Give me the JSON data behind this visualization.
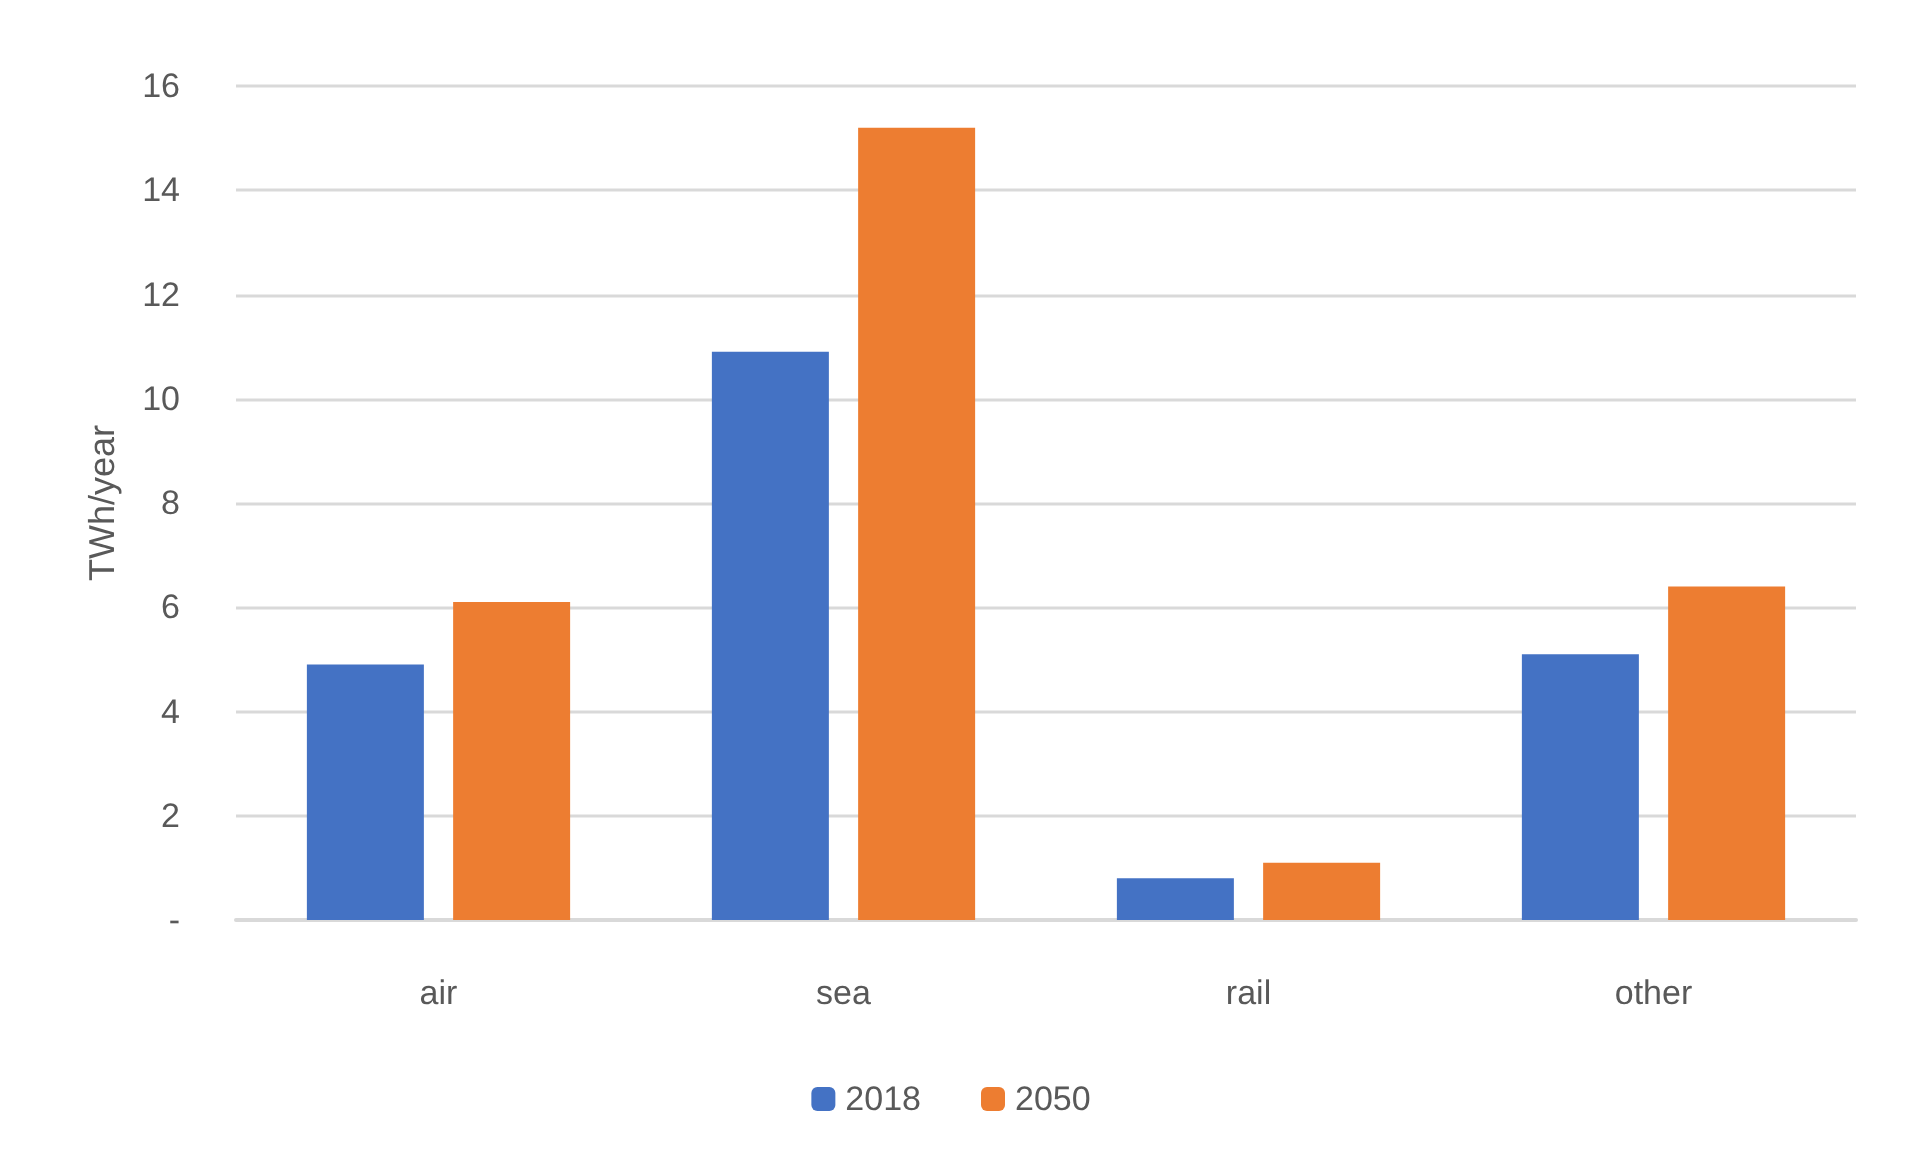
{
  "chart_data": {
    "type": "bar",
    "ylabel": "TWh/year",
    "categories": [
      "air",
      "sea",
      "rail",
      "other"
    ],
    "series": [
      {
        "name": "2018",
        "color": "#4472c4",
        "values": [
          4.9,
          10.9,
          0.8,
          5.1
        ]
      },
      {
        "name": "2050",
        "color": "#ed7d31",
        "values": [
          6.1,
          15.2,
          1.1,
          6.4
        ]
      }
    ],
    "ylim": [
      0,
      16
    ],
    "yticks": [
      {
        "value": 0,
        "label": "-"
      },
      2,
      4,
      6,
      8,
      10,
      12,
      14,
      16
    ],
    "grid": "y",
    "legend": "bottom"
  }
}
